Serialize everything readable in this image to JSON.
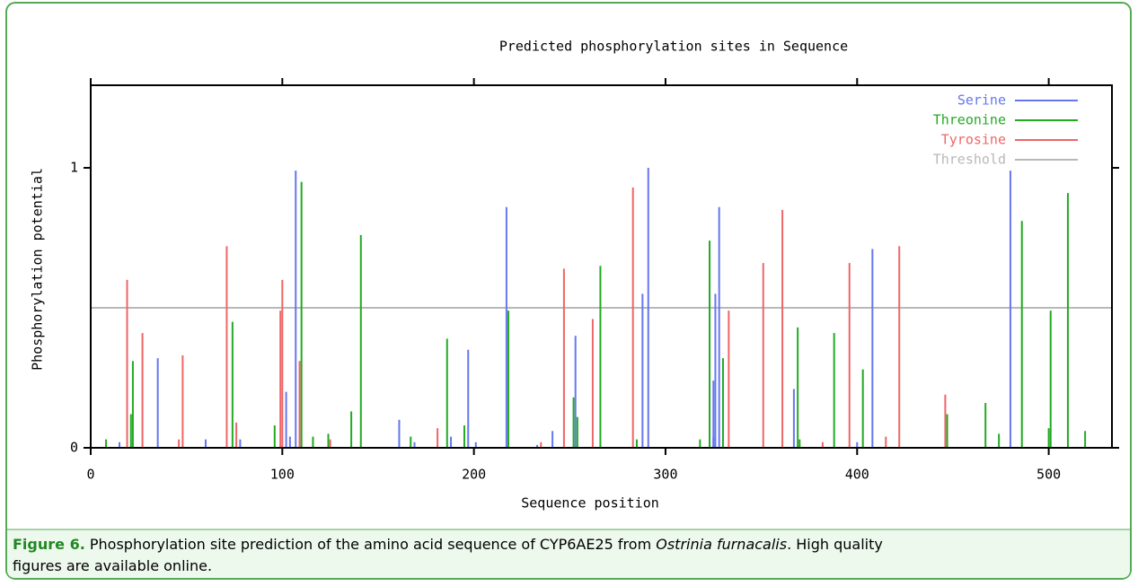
{
  "chart_data": {
    "type": "spike",
    "title": "Predicted phosphorylation sites in Sequence",
    "x_label": "Sequence position",
    "y_label": "Phosphorylation potential",
    "xlim": [
      0,
      533
    ],
    "ylim": [
      0,
      1.295
    ],
    "xticks": [
      0,
      100,
      200,
      300,
      400,
      500
    ],
    "yticks": [
      0,
      1
    ],
    "legend": "upper right",
    "series": [
      {
        "name": "Serine",
        "color": "#6677ee",
        "x": [
          15,
          35,
          60,
          78,
          102,
          104,
          107,
          161,
          169,
          188,
          197,
          201,
          217,
          233,
          241,
          253,
          288,
          291,
          325,
          325,
          326,
          328,
          367,
          400,
          408,
          480
        ],
        "values": [
          0.02,
          0.32,
          0.03,
          0.03,
          0.2,
          0.04,
          0.99,
          0.1,
          0.02,
          0.04,
          0.35,
          0.02,
          0.86,
          0.01,
          0.06,
          0.4,
          0.55,
          1.0,
          0.04,
          0.24,
          0.55,
          0.86,
          0.21,
          0.02,
          0.71,
          0.99
        ]
      },
      {
        "name": "Threonine",
        "color": "#22aa22",
        "x": [
          8,
          21,
          22,
          74,
          96,
          110,
          116,
          124,
          136,
          141,
          167,
          186,
          195,
          218,
          252,
          254,
          266,
          285,
          318,
          323,
          330,
          369,
          370,
          388,
          403,
          447,
          467,
          474,
          486,
          500,
          501,
          510,
          519
        ],
        "values": [
          0.03,
          0.12,
          0.31,
          0.45,
          0.08,
          0.95,
          0.04,
          0.05,
          0.13,
          0.76,
          0.04,
          0.39,
          0.08,
          0.49,
          0.18,
          0.11,
          0.65,
          0.03,
          0.03,
          0.74,
          0.32,
          0.43,
          0.03,
          0.41,
          0.28,
          0.12,
          0.16,
          0.05,
          0.81,
          0.07,
          0.49,
          0.91,
          0.06
        ]
      },
      {
        "name": "Tyrosine",
        "color": "#ee6666",
        "x": [
          19,
          27,
          46,
          48,
          71,
          76,
          99,
          100,
          109,
          125,
          181,
          235,
          247,
          262,
          283,
          333,
          351,
          361,
          382,
          396,
          415,
          422,
          446
        ],
        "values": [
          0.6,
          0.41,
          0.03,
          0.33,
          0.72,
          0.09,
          0.49,
          0.6,
          0.31,
          0.03,
          0.07,
          0.02,
          0.64,
          0.46,
          0.93,
          0.49,
          0.66,
          0.85,
          0.02,
          0.66,
          0.04,
          0.72,
          0.19
        ]
      }
    ],
    "threshold": {
      "name": "Threshold",
      "color": "#b8b8b8",
      "value": 0.5
    }
  },
  "caption": {
    "label": "Figure 6.",
    "text1": " Phosphorylation site prediction of the amino acid sequence of CYP6AE25 from ",
    "species": "Ostrinia furnacalis",
    "text2": ". High quality",
    "text3": "figures are available online."
  }
}
